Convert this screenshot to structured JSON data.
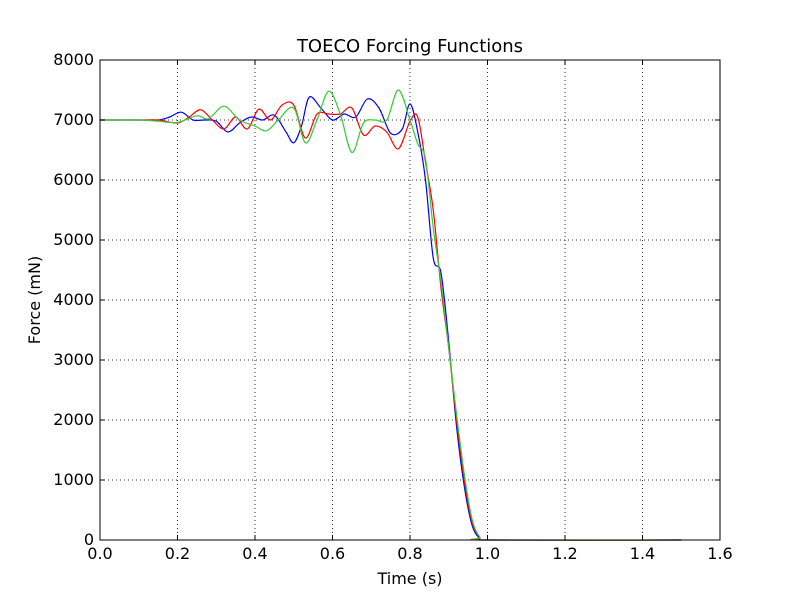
{
  "chart_data": {
    "type": "line",
    "title": "TOECO Forcing Functions",
    "xlabel": "Time (s)",
    "ylabel": "Force (mN)",
    "xlim": [
      0.0,
      1.6
    ],
    "ylim": [
      0,
      8000
    ],
    "xticks": [
      "0.0",
      "0.2",
      "0.4",
      "0.6",
      "0.8",
      "1.0",
      "1.2",
      "1.4",
      "1.6"
    ],
    "yticks": [
      "0",
      "1000",
      "2000",
      "3000",
      "4000",
      "5000",
      "6000",
      "7000",
      "8000"
    ],
    "grid": true,
    "legend": "none",
    "series": [
      {
        "color": "#0000ff",
        "x": [
          0.0,
          0.1,
          0.15,
          0.18,
          0.21,
          0.24,
          0.27,
          0.3,
          0.33,
          0.36,
          0.39,
          0.42,
          0.45,
          0.48,
          0.5,
          0.52,
          0.54,
          0.57,
          0.6,
          0.63,
          0.66,
          0.69,
          0.72,
          0.75,
          0.78,
          0.8,
          0.82,
          0.84,
          0.86,
          0.88,
          0.9,
          0.92,
          0.94,
          0.96,
          0.98,
          1.0,
          1.5
        ],
        "y": [
          7000,
          7000,
          7000,
          7050,
          7130,
          7000,
          7000,
          6980,
          6800,
          6950,
          7050,
          7000,
          7080,
          6800,
          6620,
          6900,
          7380,
          7200,
          7000,
          7100,
          7050,
          7350,
          7200,
          6780,
          6850,
          7270,
          6800,
          6000,
          4700,
          4450,
          3300,
          1900,
          900,
          250,
          30,
          0,
          0
        ]
      },
      {
        "color": "#ff0000",
        "x": [
          0.0,
          0.1,
          0.15,
          0.2,
          0.23,
          0.26,
          0.29,
          0.32,
          0.35,
          0.38,
          0.41,
          0.44,
          0.47,
          0.5,
          0.53,
          0.56,
          0.59,
          0.62,
          0.65,
          0.68,
          0.71,
          0.74,
          0.77,
          0.8,
          0.82,
          0.84,
          0.86,
          0.88,
          0.9,
          0.92,
          0.94,
          0.96,
          0.98,
          1.0,
          1.5
        ],
        "y": [
          7000,
          7000,
          7000,
          6950,
          7050,
          7170,
          7000,
          6850,
          7050,
          6850,
          7180,
          7000,
          7250,
          7250,
          6700,
          7100,
          7100,
          7100,
          7200,
          6750,
          6900,
          6800,
          6520,
          6980,
          7050,
          6300,
          5500,
          4200,
          3200,
          2000,
          1000,
          300,
          50,
          0,
          0
        ]
      },
      {
        "color": "#33cc33",
        "x": [
          0.0,
          0.1,
          0.15,
          0.2,
          0.25,
          0.28,
          0.32,
          0.36,
          0.4,
          0.43,
          0.46,
          0.5,
          0.53,
          0.56,
          0.59,
          0.62,
          0.65,
          0.68,
          0.71,
          0.74,
          0.77,
          0.8,
          0.82,
          0.84,
          0.86,
          0.88,
          0.9,
          0.92,
          0.94,
          0.96,
          0.98,
          1.0,
          1.5
        ],
        "y": [
          7000,
          7000,
          6980,
          6960,
          7070,
          7020,
          7230,
          7000,
          6900,
          6820,
          7000,
          7200,
          6620,
          7000,
          7480,
          7100,
          6460,
          6950,
          7000,
          7000,
          7500,
          7000,
          6600,
          6350,
          5200,
          4300,
          3200,
          2100,
          1100,
          350,
          50,
          0,
          0
        ]
      }
    ]
  }
}
